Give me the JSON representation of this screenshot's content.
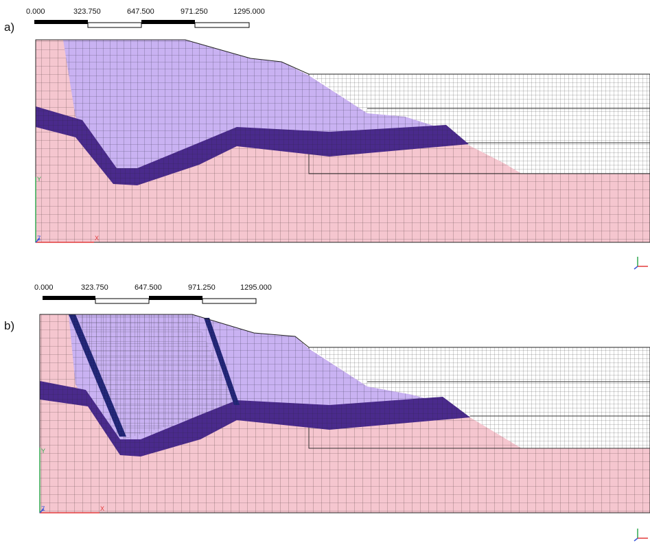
{
  "colors": {
    "foundation": "#f5c6cf",
    "core_zone": "#c9b2f2",
    "fill_zone": "#ffffff",
    "filter_layer": "#4a2a8c",
    "cutoff_wall": "#24287a",
    "mesh_line": "#2b2b2b",
    "scale_black": "#000000",
    "axis_x": "#e23b3b",
    "axis_y": "#2fa84f",
    "axis_z": "#3a55d9"
  },
  "panels": [
    {
      "label": "a)",
      "scale_ticks": [
        "0.000",
        "323.750",
        "647.500",
        "971.250",
        "1295.000"
      ],
      "axes": {
        "x": "X",
        "y": "Y",
        "z": "Z"
      },
      "has_cutoff_walls": false
    },
    {
      "label": "b)",
      "scale_ticks": [
        "0.000",
        "323.750",
        "647.500",
        "971.250",
        "1295.000"
      ],
      "axes": {
        "x": "X",
        "y": "Y",
        "z": "Z"
      },
      "has_cutoff_walls": true
    }
  ]
}
